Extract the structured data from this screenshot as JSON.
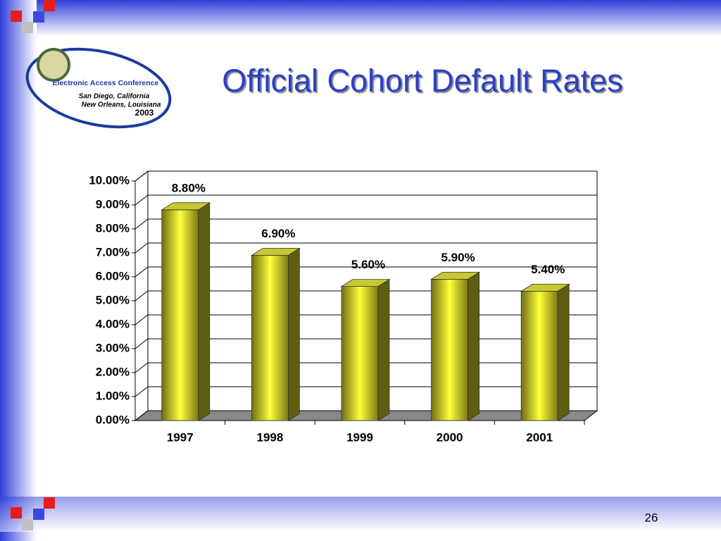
{
  "slide": {
    "logo_name": "Electronic Access Conference",
    "logo_city1": "San Diego, California",
    "logo_city2": "New Orleans, Louisiana",
    "logo_year": "2003",
    "page_number": "26"
  },
  "chart_data": {
    "type": "bar3d",
    "title": "Official Cohort Default Rates",
    "categories": [
      "1997",
      "1998",
      "1999",
      "2000",
      "2001"
    ],
    "values": [
      8.8,
      6.9,
      5.6,
      5.9,
      5.4
    ],
    "value_labels": [
      "8.80%",
      "6.90%",
      "5.60%",
      "5.90%",
      "5.40%"
    ],
    "color": "#e6e62a",
    "ylim": [
      0,
      10
    ],
    "yticks": [
      {
        "value": 0,
        "label": "0.00%"
      },
      {
        "value": 1,
        "label": "1.00%"
      },
      {
        "value": 2,
        "label": "2.00%"
      },
      {
        "value": 3,
        "label": "3.00%"
      },
      {
        "value": 4,
        "label": "4.00%"
      },
      {
        "value": 5,
        "label": "5.00%"
      },
      {
        "value": 6,
        "label": "6.00%"
      },
      {
        "value": 7,
        "label": "7.00%"
      },
      {
        "value": 8,
        "label": "8.00%"
      },
      {
        "value": 9,
        "label": "9.00%"
      },
      {
        "value": 10,
        "label": "10.00%"
      }
    ],
    "grid": true
  }
}
